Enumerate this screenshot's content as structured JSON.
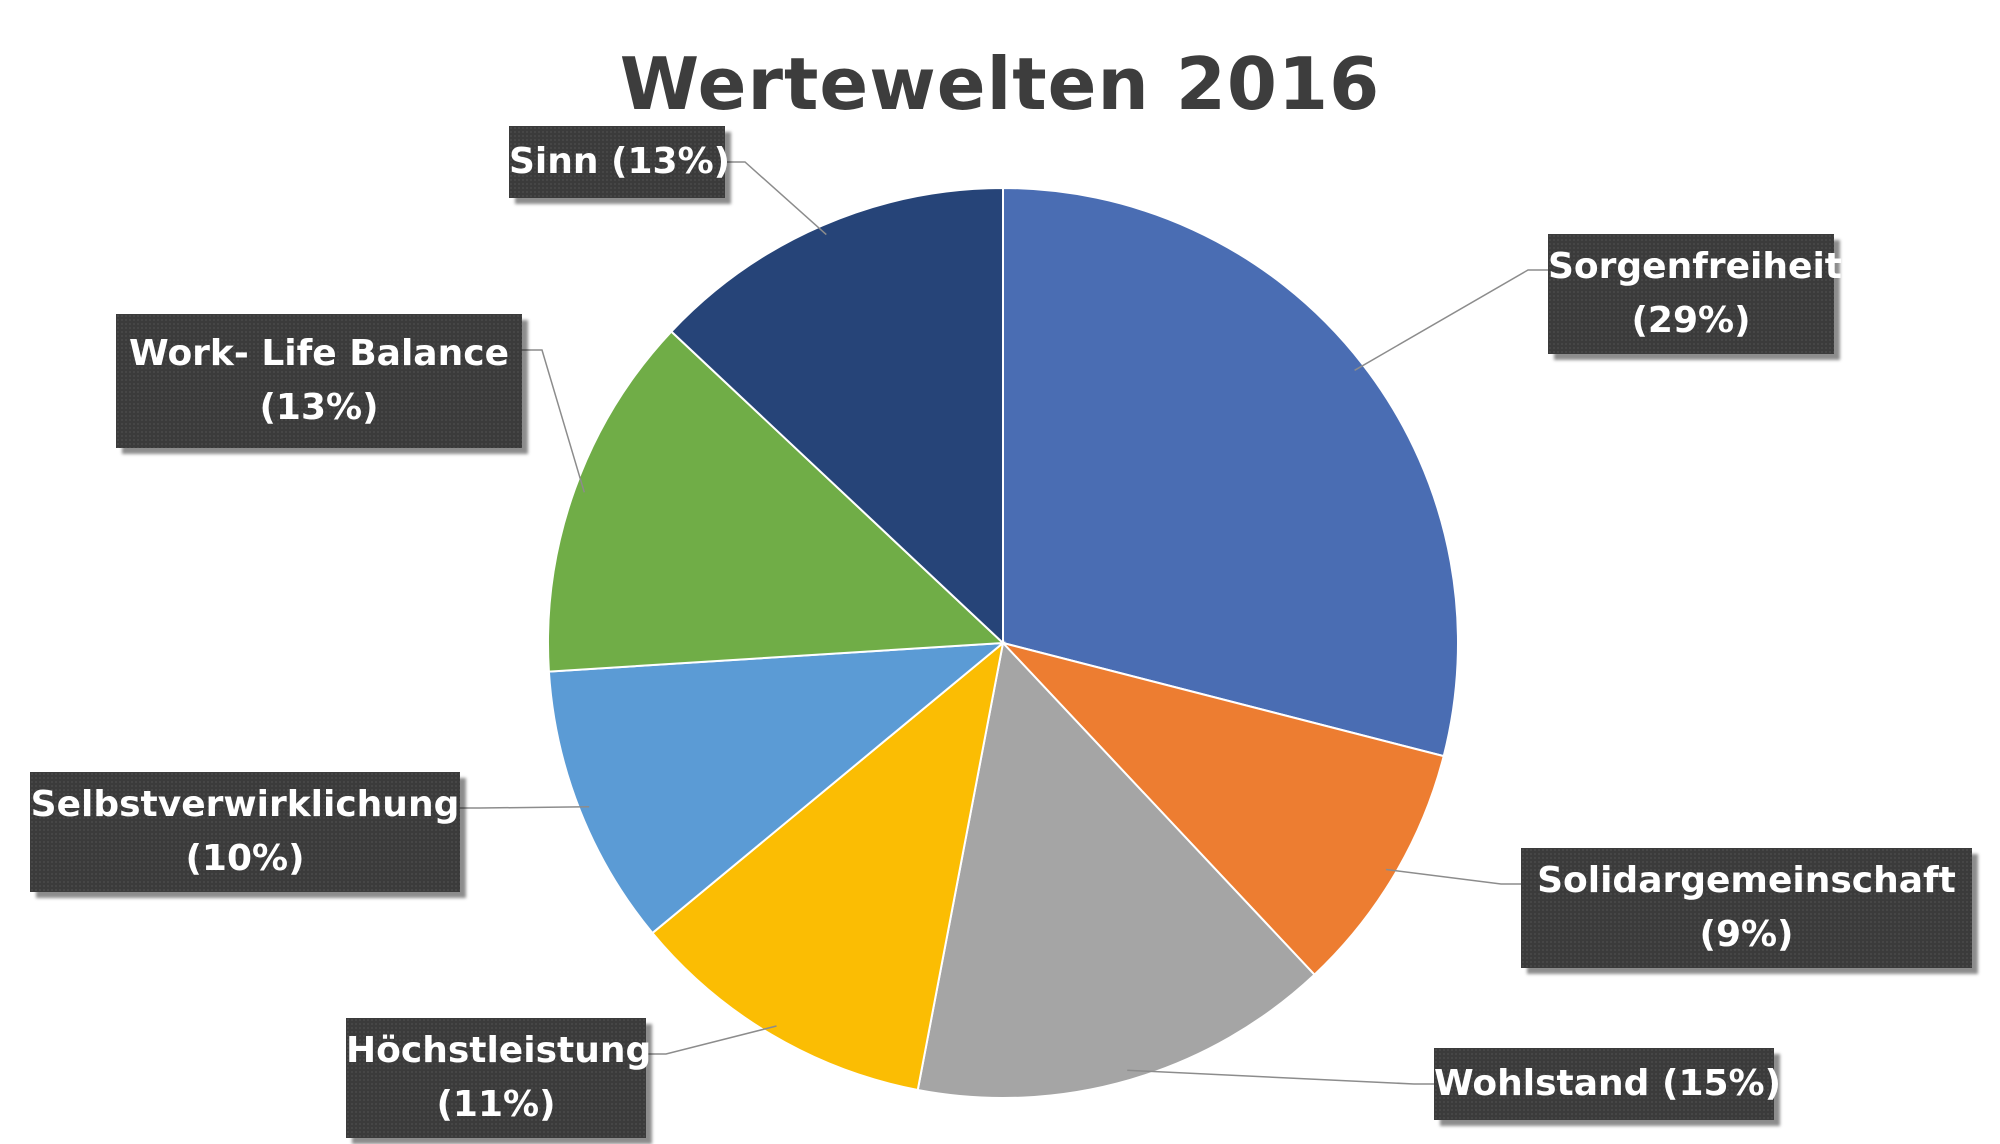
{
  "chart_data": {
    "type": "pie",
    "title": "Wertewelten 2016",
    "slices": [
      {
        "name": "Sorgenfreiheit",
        "value": 29,
        "label_line1": "Sorgenfreiheit",
        "label_line2": "(29%)",
        "color": "#4a6db3"
      },
      {
        "name": "Solidargemeinschaft",
        "value": 9,
        "label_line1": "Solidargemeinschaft",
        "label_line2": "(9%)",
        "color": "#ed7d31"
      },
      {
        "name": "Wohlstand",
        "value": 15,
        "label_line1": "Wohlstand (15%)",
        "label_line2": "",
        "color": "#a5a5a5"
      },
      {
        "name": "Höchstleistung",
        "value": 11,
        "label_line1": "Höchstleistung",
        "label_line2": "(11%)",
        "color": "#fbbd03"
      },
      {
        "name": "Selbstverwirklichung",
        "value": 10,
        "label_line1": "Selbstverwirklichung",
        "label_line2": "(10%)",
        "color": "#5b9bd5"
      },
      {
        "name": "Work- Life Balance",
        "value": 13,
        "label_line1": "Work- Life Balance",
        "label_line2": "(13%)",
        "color": "#70ad47"
      },
      {
        "name": "Sinn",
        "value": 13,
        "label_line1": "Sinn (13%)",
        "label_line2": "",
        "color": "#264478"
      }
    ],
    "start_angle": "12 o'clock",
    "direction": "clockwise",
    "legend": "none",
    "data_labels": "callout boxes with leader lines"
  }
}
